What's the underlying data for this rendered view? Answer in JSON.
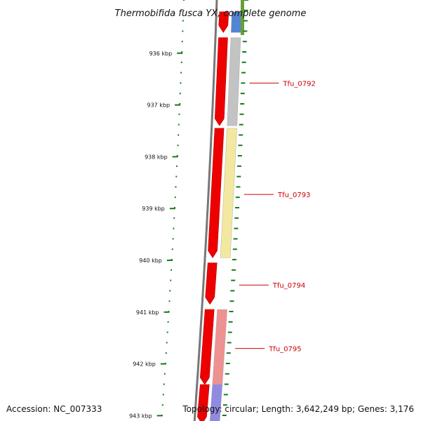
{
  "title": "Thermobifida fusca YX, complete genome",
  "footer": {
    "accession": "Accession: NC_007333",
    "stats": "Topology: circular; Length: 3,642,249 bp; Genes: 3,176"
  },
  "colors": {
    "cds": "#ee0000",
    "backbone": "#777777",
    "tick": "#1a7a1a",
    "label": "#cc0000",
    "cog_grey": "#c0c0c0",
    "cog_yellow": "#f3e79a",
    "cog_pink": "#ee8c8c",
    "cog_blue": "#4a7fd0",
    "cog_green": "#6a9e3c",
    "cog_purple": "#8c84e0"
  },
  "scale": {
    "unit": "kbp",
    "ticks": [
      {
        "pos": 936,
        "label": "936 kbp"
      },
      {
        "pos": 937,
        "label": "937 kbp"
      },
      {
        "pos": 938,
        "label": "938 kbp"
      },
      {
        "pos": 939,
        "label": "939 kbp"
      },
      {
        "pos": 940,
        "label": "940 kbp"
      },
      {
        "pos": 941,
        "label": "941 kbp"
      },
      {
        "pos": 942,
        "label": "942 kbp"
      },
      {
        "pos": 943,
        "label": "943 kbp"
      }
    ]
  },
  "genes": [
    {
      "name": "",
      "start": 935.2,
      "end": 935.6,
      "cog": "cog_blue"
    },
    {
      "name": "Tfu_0792",
      "start": 935.7,
      "end": 937.4,
      "cog": "cog_grey"
    },
    {
      "name": "Tfu_0793",
      "start": 937.45,
      "end": 939.95,
      "cog": "cog_yellow"
    },
    {
      "name": "Tfu_0794",
      "start": 940.05,
      "end": 940.85,
      "cog": ""
    },
    {
      "name": "Tfu_0795",
      "start": 940.95,
      "end": 942.4,
      "cog": "cog_pink"
    },
    {
      "name": "",
      "start": 942.4,
      "end": 943.4,
      "cog": "cog_purple"
    }
  ]
}
